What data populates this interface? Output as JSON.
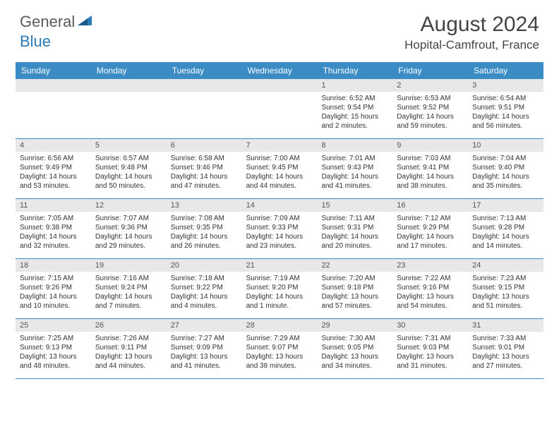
{
  "logo": {
    "part1": "General",
    "part2": "Blue"
  },
  "title": "August 2024",
  "location": "Hopital-Camfrout, France",
  "colors": {
    "header_bg": "#3b8bc5",
    "header_text": "#ffffff",
    "daynum_bg": "#e8e8e8",
    "border": "#3b8bc5",
    "logo_gray": "#5a5a5a",
    "logo_blue": "#2a7ab8"
  },
  "dayNames": [
    "Sunday",
    "Monday",
    "Tuesday",
    "Wednesday",
    "Thursday",
    "Friday",
    "Saturday"
  ],
  "weeks": [
    [
      {
        "n": "",
        "empty": true
      },
      {
        "n": "",
        "empty": true
      },
      {
        "n": "",
        "empty": true
      },
      {
        "n": "",
        "empty": true
      },
      {
        "n": "1",
        "sr": "6:52 AM",
        "ss": "9:54 PM",
        "dl": "15 hours and 2 minutes."
      },
      {
        "n": "2",
        "sr": "6:53 AM",
        "ss": "9:52 PM",
        "dl": "14 hours and 59 minutes."
      },
      {
        "n": "3",
        "sr": "6:54 AM",
        "ss": "9:51 PM",
        "dl": "14 hours and 56 minutes."
      }
    ],
    [
      {
        "n": "4",
        "sr": "6:56 AM",
        "ss": "9:49 PM",
        "dl": "14 hours and 53 minutes."
      },
      {
        "n": "5",
        "sr": "6:57 AM",
        "ss": "9:48 PM",
        "dl": "14 hours and 50 minutes."
      },
      {
        "n": "6",
        "sr": "6:58 AM",
        "ss": "9:46 PM",
        "dl": "14 hours and 47 minutes."
      },
      {
        "n": "7",
        "sr": "7:00 AM",
        "ss": "9:45 PM",
        "dl": "14 hours and 44 minutes."
      },
      {
        "n": "8",
        "sr": "7:01 AM",
        "ss": "9:43 PM",
        "dl": "14 hours and 41 minutes."
      },
      {
        "n": "9",
        "sr": "7:03 AM",
        "ss": "9:41 PM",
        "dl": "14 hours and 38 minutes."
      },
      {
        "n": "10",
        "sr": "7:04 AM",
        "ss": "9:40 PM",
        "dl": "14 hours and 35 minutes."
      }
    ],
    [
      {
        "n": "11",
        "sr": "7:05 AM",
        "ss": "9:38 PM",
        "dl": "14 hours and 32 minutes."
      },
      {
        "n": "12",
        "sr": "7:07 AM",
        "ss": "9:36 PM",
        "dl": "14 hours and 29 minutes."
      },
      {
        "n": "13",
        "sr": "7:08 AM",
        "ss": "9:35 PM",
        "dl": "14 hours and 26 minutes."
      },
      {
        "n": "14",
        "sr": "7:09 AM",
        "ss": "9:33 PM",
        "dl": "14 hours and 23 minutes."
      },
      {
        "n": "15",
        "sr": "7:11 AM",
        "ss": "9:31 PM",
        "dl": "14 hours and 20 minutes."
      },
      {
        "n": "16",
        "sr": "7:12 AM",
        "ss": "9:29 PM",
        "dl": "14 hours and 17 minutes."
      },
      {
        "n": "17",
        "sr": "7:13 AM",
        "ss": "9:28 PM",
        "dl": "14 hours and 14 minutes."
      }
    ],
    [
      {
        "n": "18",
        "sr": "7:15 AM",
        "ss": "9:26 PM",
        "dl": "14 hours and 10 minutes."
      },
      {
        "n": "19",
        "sr": "7:16 AM",
        "ss": "9:24 PM",
        "dl": "14 hours and 7 minutes."
      },
      {
        "n": "20",
        "sr": "7:18 AM",
        "ss": "9:22 PM",
        "dl": "14 hours and 4 minutes."
      },
      {
        "n": "21",
        "sr": "7:19 AM",
        "ss": "9:20 PM",
        "dl": "14 hours and 1 minute."
      },
      {
        "n": "22",
        "sr": "7:20 AM",
        "ss": "9:18 PM",
        "dl": "13 hours and 57 minutes."
      },
      {
        "n": "23",
        "sr": "7:22 AM",
        "ss": "9:16 PM",
        "dl": "13 hours and 54 minutes."
      },
      {
        "n": "24",
        "sr": "7:23 AM",
        "ss": "9:15 PM",
        "dl": "13 hours and 51 minutes."
      }
    ],
    [
      {
        "n": "25",
        "sr": "7:25 AM",
        "ss": "9:13 PM",
        "dl": "13 hours and 48 minutes."
      },
      {
        "n": "26",
        "sr": "7:26 AM",
        "ss": "9:11 PM",
        "dl": "13 hours and 44 minutes."
      },
      {
        "n": "27",
        "sr": "7:27 AM",
        "ss": "9:09 PM",
        "dl": "13 hours and 41 minutes."
      },
      {
        "n": "28",
        "sr": "7:29 AM",
        "ss": "9:07 PM",
        "dl": "13 hours and 38 minutes."
      },
      {
        "n": "29",
        "sr": "7:30 AM",
        "ss": "9:05 PM",
        "dl": "13 hours and 34 minutes."
      },
      {
        "n": "30",
        "sr": "7:31 AM",
        "ss": "9:03 PM",
        "dl": "13 hours and 31 minutes."
      },
      {
        "n": "31",
        "sr": "7:33 AM",
        "ss": "9:01 PM",
        "dl": "13 hours and 27 minutes."
      }
    ]
  ],
  "labels": {
    "sunrise": "Sunrise:",
    "sunset": "Sunset:",
    "daylight": "Daylight:"
  }
}
